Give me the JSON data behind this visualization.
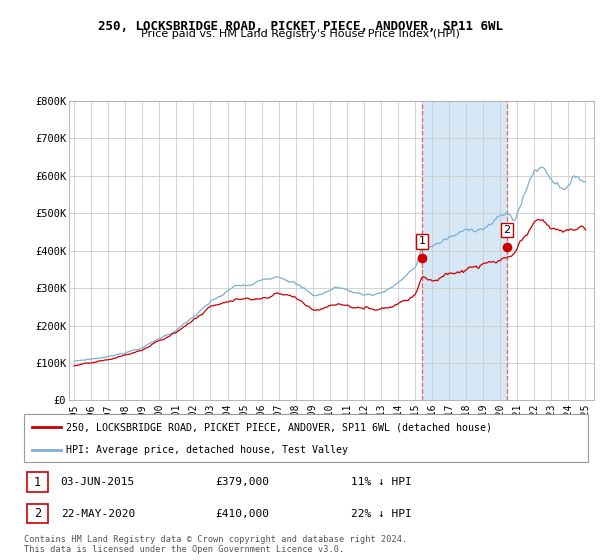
{
  "title": "250, LOCKSBRIDGE ROAD, PICKET PIECE, ANDOVER, SP11 6WL",
  "subtitle": "Price paid vs. HM Land Registry's House Price Index (HPI)",
  "legend_line1": "250, LOCKSBRIDGE ROAD, PICKET PIECE, ANDOVER, SP11 6WL (detached house)",
  "legend_line2": "HPI: Average price, detached house, Test Valley",
  "marker1_date": "03-JUN-2015",
  "marker1_price": 379000,
  "marker1_label": "11% ↓ HPI",
  "marker2_date": "22-MAY-2020",
  "marker2_price": 410000,
  "marker2_label": "22% ↓ HPI",
  "footer": "Contains HM Land Registry data © Crown copyright and database right 2024.\nThis data is licensed under the Open Government Licence v3.0.",
  "red_color": "#cc0000",
  "blue_color": "#7ab0d4",
  "shade_color": "#d6e8f5",
  "background_color": "#ffffff",
  "grid_color": "#cccccc",
  "sale1_x": 2015.42,
  "sale1_y": 379000,
  "sale2_x": 2020.38,
  "sale2_y": 410000,
  "ylim": [
    0,
    800000
  ],
  "xlim_left": 1994.7,
  "xlim_right": 2025.5,
  "xticks": [
    1995,
    1996,
    1997,
    1998,
    1999,
    2000,
    2001,
    2002,
    2003,
    2004,
    2005,
    2006,
    2007,
    2008,
    2009,
    2010,
    2011,
    2012,
    2013,
    2014,
    2015,
    2016,
    2017,
    2018,
    2019,
    2020,
    2021,
    2022,
    2023,
    2024,
    2025
  ],
  "yticks": [
    0,
    100000,
    200000,
    300000,
    400000,
    500000,
    600000,
    700000,
    800000
  ]
}
